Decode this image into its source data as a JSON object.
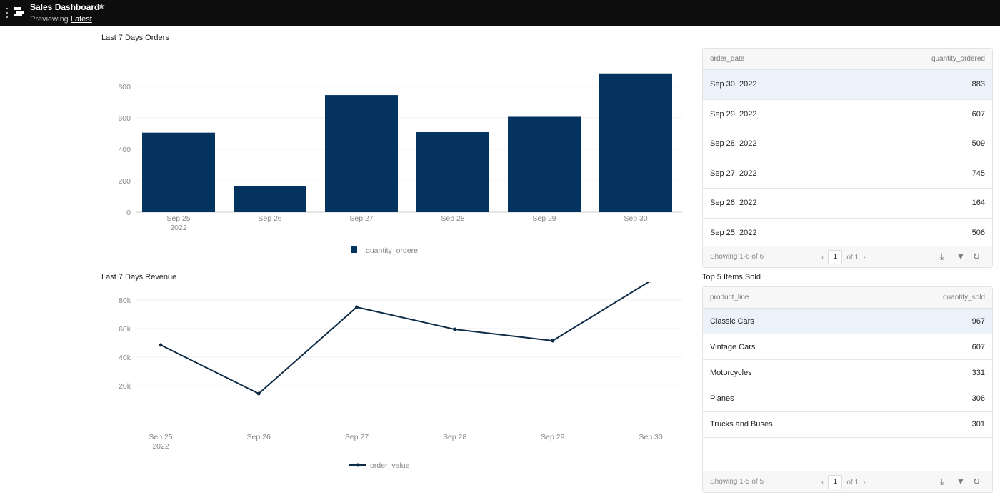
{
  "header": {
    "title": "Sales Dashboard",
    "previewing": "Previewing",
    "version": "Latest",
    "icons": [
      "more-vertical-icon",
      "dashboard-logo-icon",
      "star-icon"
    ]
  },
  "bar_chart_title": "Last 7 Days Orders",
  "line_chart_title": "Last 7 Days Revenue",
  "chart_data": [
    {
      "type": "bar",
      "title": "Last 7 Days Orders",
      "categories": [
        "Sep 25\n2022",
        "Sep 26",
        "Sep 27",
        "Sep 28",
        "Sep 29",
        "Sep 30"
      ],
      "series": [
        {
          "name": "quantity_ordere",
          "values": [
            506,
            164,
            745,
            509,
            607,
            883
          ],
          "color": "#04335f"
        }
      ],
      "yticks": [
        0,
        200,
        400,
        600,
        800
      ],
      "ylim": [
        0,
        900
      ],
      "grid": true,
      "legend": "bottom"
    },
    {
      "type": "line",
      "title": "Last 7 Days Revenue",
      "categories": [
        "Sep 25\n2022",
        "Sep 26",
        "Sep 27",
        "Sep 28",
        "Sep 29",
        "Sep 30"
      ],
      "series": [
        {
          "name": "order_value",
          "values": [
            48500,
            14500,
            75000,
            59500,
            51500,
            93500
          ],
          "color": "#0e2b47"
        }
      ],
      "yticks": [
        "20k",
        "40k",
        "60k",
        "80k"
      ],
      "ytick_values": [
        20000,
        40000,
        60000,
        80000
      ],
      "ylim": [
        8000,
        98000
      ],
      "grid": true,
      "legend": "bottom"
    }
  ],
  "orders_table": {
    "columns": [
      "order_date",
      "quantity_ordered"
    ],
    "rows": [
      [
        "Sep 30, 2022",
        "883"
      ],
      [
        "Sep 29, 2022",
        "607"
      ],
      [
        "Sep 28, 2022",
        "509"
      ],
      [
        "Sep 27, 2022",
        "745"
      ],
      [
        "Sep 26, 2022",
        "164"
      ],
      [
        "Sep 25, 2022",
        "506"
      ]
    ],
    "showing": "Showing 1-6 of 6",
    "page": "1",
    "of": "of 1"
  },
  "items_title": "Top 5 Items Sold",
  "items_table": {
    "columns": [
      "product_line",
      "quantity_sold"
    ],
    "rows": [
      [
        "Classic Cars",
        "967"
      ],
      [
        "Vintage Cars",
        "607"
      ],
      [
        "Motorcycles",
        "331"
      ],
      [
        "Planes",
        "306"
      ],
      [
        "Trucks and Buses",
        "301"
      ]
    ],
    "showing": "Showing 1-5 of 5",
    "page": "1",
    "of": "of 1"
  }
}
